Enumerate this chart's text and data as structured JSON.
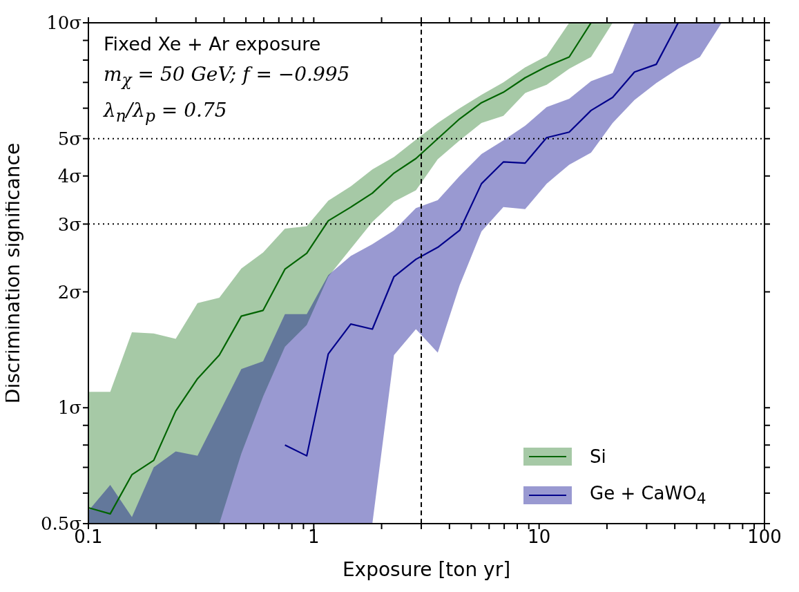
{
  "chart_data": {
    "type": "line",
    "xlabel": "Exposure [ton yr]",
    "ylabel": "Discrimination significance",
    "annotations": [
      "Fixed Xe + Ar exposure",
      "m$_{χ}$ = 50 GeV; f = −0.995",
      "λ$_{n}$/λ$_{p}$ = 0.75"
    ],
    "x": [
      0.1,
      0.125,
      0.156,
      0.195,
      0.244,
      0.305,
      0.381,
      0.477,
      0.596,
      0.745,
      0.931,
      1.16,
      1.46,
      1.82,
      2.27,
      2.84,
      3.55,
      4.44,
      5.55,
      6.94,
      8.67,
      10.8,
      13.6,
      17.0,
      21.2,
      26.5,
      33.1,
      41.4,
      51.7,
      64.6
    ],
    "series": [
      {
        "name": "Si",
        "color": "#006400",
        "x": [
          0.1,
          0.125,
          0.156,
          0.195,
          0.244,
          0.305,
          0.381,
          0.477,
          0.596,
          0.745,
          0.931,
          1.16,
          1.46,
          1.82,
          2.27,
          2.84,
          3.55,
          4.44,
          5.55,
          6.94,
          8.67,
          10.8,
          13.6,
          17.0,
          21.2
        ],
        "values": [
          0.55,
          0.53,
          0.67,
          0.73,
          0.98,
          1.19,
          1.37,
          1.73,
          1.79,
          2.29,
          2.52,
          3.06,
          3.32,
          3.61,
          4.07,
          4.44,
          5.0,
          5.63,
          6.2,
          6.6,
          7.2,
          7.7,
          8.15,
          10,
          null
        ],
        "lower": [
          0.5,
          0.5,
          0.5,
          0.5,
          0.5,
          0.5,
          0.5,
          0.76,
          1.07,
          1.44,
          1.64,
          2.19,
          2.59,
          3.04,
          3.43,
          3.67,
          4.42,
          4.95,
          5.49,
          5.73,
          6.57,
          6.9,
          7.6,
          8.15,
          10
        ],
        "upper": [
          1.1,
          1.1,
          1.57,
          1.56,
          1.51,
          1.87,
          1.93,
          2.3,
          2.53,
          2.92,
          2.96,
          3.45,
          3.76,
          4.16,
          4.48,
          4.97,
          5.49,
          6.0,
          6.5,
          7.0,
          7.66,
          8.2,
          10,
          10,
          10
        ]
      },
      {
        "name": "Ge + CaWO$_{4}$",
        "color": "#00008b",
        "values": [
          null,
          null,
          null,
          null,
          null,
          null,
          null,
          null,
          null,
          0.8,
          0.75,
          1.38,
          1.65,
          1.6,
          2.19,
          2.43,
          2.61,
          2.89,
          3.82,
          4.35,
          4.32,
          5.03,
          5.2,
          5.92,
          6.4,
          7.45,
          7.8,
          10,
          null,
          null
        ],
        "lower": [
          0.5,
          0.5,
          0.5,
          0.5,
          0.5,
          0.5,
          0.5,
          0.5,
          0.5,
          0.5,
          0.5,
          0.5,
          0.5,
          0.5,
          1.37,
          1.6,
          1.39,
          2.08,
          2.87,
          3.32,
          3.28,
          3.82,
          4.28,
          4.6,
          5.49,
          6.3,
          6.97,
          7.6,
          8.15,
          10
        ],
        "upper": [
          0.54,
          0.63,
          0.52,
          0.7,
          0.77,
          0.75,
          0.97,
          1.26,
          1.32,
          1.75,
          1.75,
          2.21,
          2.48,
          2.66,
          2.89,
          3.3,
          3.46,
          4.0,
          4.56,
          4.95,
          5.4,
          6.04,
          6.35,
          7.05,
          7.4,
          10,
          10,
          10,
          10,
          10
        ]
      }
    ],
    "log": "xy",
    "xlim": [
      0.1,
      100
    ],
    "ylim": [
      0.5,
      10
    ],
    "xticks": [
      0.1,
      {
        "value": 0.2,
        "label": null
      },
      {
        "value": 0.3,
        "label": null
      },
      {
        "value": 0.4,
        "label": null
      },
      {
        "value": 0.5,
        "label": null
      },
      {
        "value": 0.6,
        "label": null
      },
      {
        "value": 0.7,
        "label": null
      },
      {
        "value": 0.8,
        "label": null
      },
      {
        "value": 0.9,
        "label": null
      },
      1,
      {
        "value": 2,
        "label": null
      },
      {
        "value": 3,
        "label": null
      },
      {
        "value": 4,
        "label": null
      },
      {
        "value": 5,
        "label": null
      },
      {
        "value": 6,
        "label": null
      },
      {
        "value": 7,
        "label": null
      },
      {
        "value": 8,
        "label": null
      },
      {
        "value": 9,
        "label": null
      },
      10,
      {
        "value": 20,
        "label": null
      },
      {
        "value": 30,
        "label": null
      },
      {
        "value": 40,
        "label": null
      },
      {
        "value": 50,
        "label": null
      },
      {
        "value": 60,
        "label": null
      },
      {
        "value": 70,
        "label": null
      },
      {
        "value": 80,
        "label": null
      },
      {
        "value": 90,
        "label": null
      },
      100
    ],
    "yticks": [
      {
        "value": 0.5,
        "label": "0.5σ"
      },
      {
        "value": 0.6,
        "label": null
      },
      {
        "value": 0.7,
        "label": null
      },
      {
        "value": 0.8,
        "label": null
      },
      {
        "value": 0.9,
        "label": null
      },
      {
        "value": 1,
        "label": "1σ"
      },
      {
        "value": 2,
        "label": "2σ"
      },
      {
        "value": 3,
        "label": "3σ"
      },
      {
        "value": 4,
        "label": "4σ"
      },
      {
        "value": 5,
        "label": "5σ"
      },
      {
        "value": 6,
        "label": null
      },
      {
        "value": 7,
        "label": null
      },
      {
        "value": 8,
        "label": null
      },
      {
        "value": 9,
        "label": null
      },
      {
        "value": 10,
        "label": "10σ"
      }
    ],
    "ref_lines": [
      {
        "axis": "x",
        "value": 3,
        "line_style": "dashed",
        "color": "#000000"
      },
      {
        "axis": "y",
        "value": 5,
        "line_style": "dotted",
        "color": "#000000"
      },
      {
        "axis": "y",
        "value": 3,
        "line_style": "dotted",
        "color": "#000000"
      }
    ],
    "grid": false,
    "legend": "bottom right",
    "marker": "none",
    "line_style": "solid"
  }
}
